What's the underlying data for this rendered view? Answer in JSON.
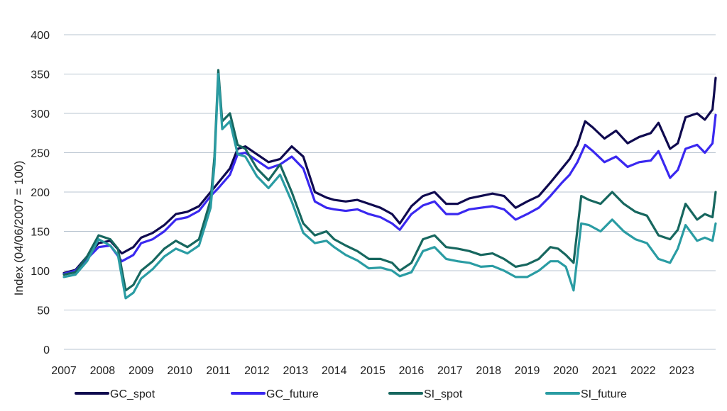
{
  "chart_data": {
    "type": "line",
    "title": "",
    "xlabel": "",
    "ylabel": "Index (04/06/2007 = 100)",
    "x_ticks": [
      "2007",
      "2008",
      "2009",
      "2010",
      "2011",
      "2012",
      "2013",
      "2014",
      "2015",
      "2016",
      "2017",
      "2018",
      "2019",
      "2020",
      "2021",
      "2022",
      "2023"
    ],
    "y_ticks": [
      "0",
      "50",
      "100",
      "150",
      "200",
      "250",
      "300",
      "350",
      "400"
    ],
    "xlim": [
      2007.0,
      2023.88
    ],
    "ylim": [
      0,
      400
    ],
    "grid": "horizontal",
    "legend_position": "bottom",
    "series": [
      {
        "name": "GC_spot",
        "color": "#0f0a4f",
        "x": [
          2007.0,
          2007.3,
          2007.6,
          2007.9,
          2008.2,
          2008.5,
          2008.8,
          2009.0,
          2009.3,
          2009.6,
          2009.9,
          2010.2,
          2010.5,
          2010.8,
          2011.0,
          2011.3,
          2011.5,
          2011.7,
          2012.0,
          2012.3,
          2012.6,
          2012.9,
          2013.2,
          2013.5,
          2013.8,
          2014.0,
          2014.3,
          2014.6,
          2014.9,
          2015.2,
          2015.5,
          2015.7,
          2016.0,
          2016.3,
          2016.6,
          2016.9,
          2017.2,
          2017.5,
          2017.8,
          2018.1,
          2018.4,
          2018.7,
          2019.0,
          2019.3,
          2019.6,
          2019.9,
          2020.1,
          2020.3,
          2020.5,
          2020.7,
          2021.0,
          2021.3,
          2021.6,
          2021.9,
          2022.2,
          2022.4,
          2022.7,
          2022.9,
          2023.1,
          2023.4,
          2023.6,
          2023.8,
          2023.88
        ],
        "y": [
          97,
          101,
          118,
          135,
          138,
          122,
          130,
          142,
          148,
          158,
          172,
          175,
          182,
          200,
          212,
          230,
          255,
          258,
          248,
          238,
          242,
          258,
          245,
          200,
          193,
          190,
          188,
          190,
          185,
          180,
          172,
          160,
          182,
          195,
          200,
          185,
          185,
          192,
          195,
          198,
          195,
          180,
          188,
          195,
          212,
          230,
          242,
          260,
          290,
          282,
          268,
          278,
          262,
          270,
          275,
          288,
          255,
          262,
          295,
          300,
          292,
          305,
          345
        ]
      },
      {
        "name": "GC_future",
        "color": "#3a28f0",
        "x": [
          2007.0,
          2007.3,
          2007.6,
          2007.9,
          2008.2,
          2008.5,
          2008.8,
          2009.0,
          2009.3,
          2009.6,
          2009.9,
          2010.2,
          2010.5,
          2010.8,
          2011.0,
          2011.3,
          2011.5,
          2011.7,
          2012.0,
          2012.3,
          2012.6,
          2012.9,
          2013.2,
          2013.5,
          2013.8,
          2014.0,
          2014.3,
          2014.6,
          2014.9,
          2015.2,
          2015.5,
          2015.7,
          2016.0,
          2016.3,
          2016.6,
          2016.9,
          2017.2,
          2017.5,
          2017.8,
          2018.1,
          2018.4,
          2018.7,
          2019.0,
          2019.3,
          2019.6,
          2019.9,
          2020.1,
          2020.3,
          2020.5,
          2020.7,
          2021.0,
          2021.3,
          2021.6,
          2021.9,
          2022.2,
          2022.4,
          2022.7,
          2022.9,
          2023.1,
          2023.4,
          2023.6,
          2023.8,
          2023.88
        ],
        "y": [
          96,
          100,
          115,
          130,
          132,
          112,
          120,
          135,
          140,
          150,
          165,
          168,
          176,
          195,
          205,
          222,
          248,
          250,
          240,
          230,
          235,
          245,
          230,
          188,
          180,
          178,
          176,
          178,
          172,
          168,
          160,
          152,
          172,
          183,
          188,
          172,
          172,
          178,
          180,
          182,
          178,
          165,
          172,
          180,
          195,
          212,
          222,
          238,
          260,
          252,
          238,
          245,
          232,
          238,
          240,
          252,
          218,
          228,
          255,
          260,
          250,
          262,
          298
        ]
      },
      {
        "name": "SI_spot",
        "color": "#17675f",
        "x": [
          2007.0,
          2007.3,
          2007.6,
          2007.9,
          2008.2,
          2008.4,
          2008.6,
          2008.8,
          2009.0,
          2009.3,
          2009.6,
          2009.9,
          2010.2,
          2010.5,
          2010.8,
          2010.9,
          2011.0,
          2011.1,
          2011.3,
          2011.5,
          2011.7,
          2012.0,
          2012.3,
          2012.6,
          2012.9,
          2013.2,
          2013.5,
          2013.8,
          2014.0,
          2014.3,
          2014.6,
          2014.9,
          2015.2,
          2015.5,
          2015.7,
          2016.0,
          2016.3,
          2016.6,
          2016.9,
          2017.2,
          2017.5,
          2017.8,
          2018.1,
          2018.4,
          2018.7,
          2019.0,
          2019.3,
          2019.6,
          2019.8,
          2020.0,
          2020.2,
          2020.4,
          2020.6,
          2020.9,
          2021.2,
          2021.5,
          2021.8,
          2022.1,
          2022.4,
          2022.7,
          2022.9,
          2023.1,
          2023.4,
          2023.6,
          2023.8,
          2023.88
        ],
        "y": [
          95,
          98,
          118,
          145,
          140,
          128,
          75,
          82,
          100,
          112,
          128,
          138,
          130,
          140,
          190,
          245,
          355,
          290,
          300,
          260,
          255,
          230,
          215,
          235,
          200,
          160,
          145,
          150,
          140,
          132,
          125,
          115,
          115,
          110,
          100,
          110,
          140,
          145,
          130,
          128,
          125,
          120,
          122,
          115,
          105,
          108,
          115,
          130,
          128,
          120,
          110,
          195,
          190,
          185,
          200,
          185,
          175,
          170,
          145,
          140,
          152,
          185,
          165,
          172,
          168,
          200
        ]
      },
      {
        "name": "SI_future",
        "color": "#2a9ca3",
        "x": [
          2007.0,
          2007.3,
          2007.6,
          2007.9,
          2008.2,
          2008.4,
          2008.6,
          2008.8,
          2009.0,
          2009.3,
          2009.6,
          2009.9,
          2010.2,
          2010.5,
          2010.8,
          2010.9,
          2011.0,
          2011.1,
          2011.3,
          2011.5,
          2011.7,
          2012.0,
          2012.3,
          2012.6,
          2012.9,
          2013.2,
          2013.5,
          2013.8,
          2014.0,
          2014.3,
          2014.6,
          2014.9,
          2015.2,
          2015.5,
          2015.7,
          2016.0,
          2016.3,
          2016.6,
          2016.9,
          2017.2,
          2017.5,
          2017.8,
          2018.1,
          2018.4,
          2018.7,
          2019.0,
          2019.3,
          2019.6,
          2019.8,
          2020.0,
          2020.2,
          2020.4,
          2020.6,
          2020.9,
          2021.2,
          2021.5,
          2021.8,
          2022.1,
          2022.4,
          2022.7,
          2022.9,
          2023.1,
          2023.4,
          2023.6,
          2023.8,
          2023.88
        ],
        "y": [
          92,
          95,
          112,
          140,
          132,
          120,
          65,
          72,
          90,
          102,
          118,
          128,
          122,
          132,
          180,
          235,
          350,
          280,
          290,
          248,
          245,
          220,
          205,
          222,
          188,
          148,
          135,
          138,
          130,
          120,
          113,
          103,
          104,
          100,
          93,
          98,
          125,
          130,
          115,
          112,
          110,
          105,
          106,
          100,
          92,
          92,
          100,
          112,
          112,
          105,
          75,
          160,
          158,
          150,
          165,
          150,
          140,
          135,
          115,
          110,
          128,
          158,
          138,
          142,
          138,
          160
        ]
      }
    ]
  }
}
